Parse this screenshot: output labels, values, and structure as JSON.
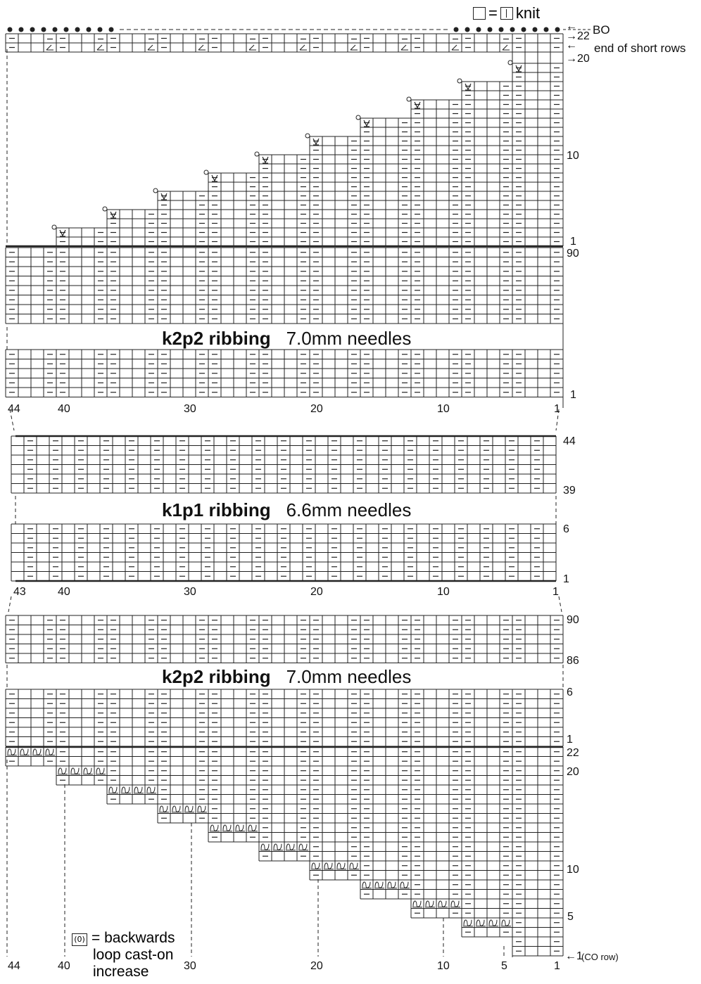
{
  "legend": {
    "knit_equals": "=",
    "knit_label": "knit",
    "loop_equals": "= backwards",
    "loop_line2": "loop cast-on",
    "loop_line3": "increase",
    "loop_glyph": "(0)"
  },
  "top_labels": {
    "bo": "BO",
    "row22": "→22",
    "end_short_rows": "end of short rows",
    "row20": "→20",
    "arrow_left": "←"
  },
  "sections": [
    {
      "name": "k2p2 ribbing",
      "needles": "7.0mm needles"
    },
    {
      "name": "k1p1 ribbing",
      "needles": "6.6mm needles"
    },
    {
      "name": "k2p2 ribbing",
      "needles": "7.0mm needles"
    }
  ],
  "row_numbers": {
    "short_row_10": "10",
    "short_row_1": "1",
    "body_top_90": "90",
    "body_bottom_1": "1",
    "k1p1_top_44": "44",
    "k1p1_39": "39",
    "k1p1_6": "6",
    "k1p1_1": "1",
    "lower_90": "90",
    "lower_86": "86",
    "lower_6": "6",
    "lower_1": "1",
    "inc_22": "22",
    "inc_20": "20",
    "inc_10": "10",
    "inc_5": "5",
    "inc_1": "←1",
    "co_row": "(CO row)"
  },
  "column_numbers": {
    "set1": [
      "44",
      "40",
      "30",
      "20",
      "10",
      "1"
    ],
    "set2": [
      "43",
      "40",
      "30",
      "20",
      "10",
      "1"
    ],
    "set3": [
      "44",
      "40",
      "30",
      "20",
      "10",
      "5",
      "1"
    ]
  },
  "symbols": {
    "purl": "purl-dash",
    "slip": "slip-stitch-v",
    "k2tog": "k2tog-decrease",
    "bind_off": "bind-off-dot",
    "loop": "backwards-loop"
  },
  "colors": {
    "ink": "#222222",
    "bg": "#ffffff"
  }
}
